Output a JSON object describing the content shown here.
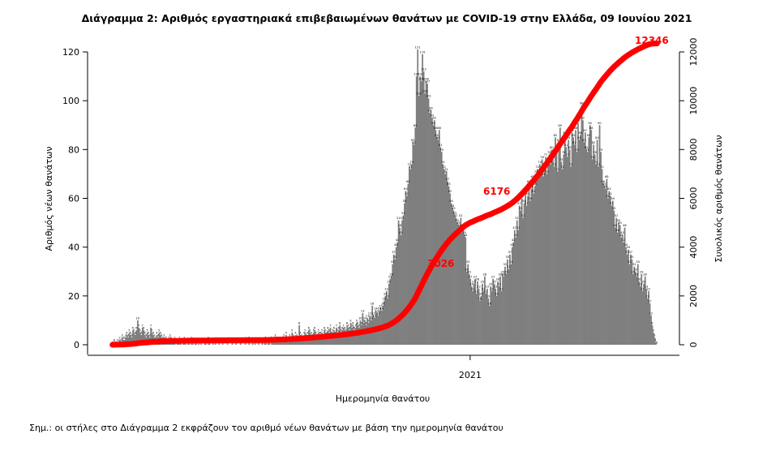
{
  "chart_data": {
    "type": "bar+line",
    "title": "Διάγραμμα 2: Αριθμός εργαστηριακά επιβεβαιωμένων θανάτων με COVID-19 στην Ελλάδα, 09 Ιουνίου 2021",
    "xlabel": "Ημερομηνία θανάτου",
    "ylabel_left": "Αριθμός νέων θανάτων",
    "ylabel_right": "Συνολικός αριθμός θανάτων",
    "x_tick_labels": [
      "2021"
    ],
    "ylim_left": [
      0,
      120
    ],
    "yticks_left": [
      0,
      20,
      40,
      60,
      80,
      100,
      120
    ],
    "ylim_right": [
      0,
      12000
    ],
    "yticks_right": [
      0,
      2000,
      4000,
      6000,
      8000,
      10000,
      12000
    ],
    "grid": false,
    "bar_color": "#7f7f7f",
    "line_color": "#ff0000",
    "series": [
      {
        "type": "bar",
        "values": [
          0,
          1,
          1,
          0,
          1,
          1,
          2,
          1,
          3,
          2,
          2,
          3,
          4,
          3,
          5,
          4,
          3,
          6,
          5,
          4,
          6,
          10,
          7,
          5,
          4,
          7,
          6,
          4,
          3,
          5,
          4,
          3,
          7,
          5,
          4,
          3,
          2,
          4,
          3,
          5,
          4,
          3,
          2,
          3,
          2,
          2,
          1,
          2,
          3,
          2,
          1,
          1,
          2,
          0,
          1,
          1,
          2,
          1,
          0,
          1,
          2,
          1,
          0,
          1,
          1,
          0,
          2,
          1,
          0,
          1,
          1,
          0,
          1,
          0,
          1,
          0,
          0,
          1,
          1,
          0,
          2,
          1,
          0,
          0,
          1,
          0,
          1,
          0,
          0,
          1,
          0,
          0,
          1,
          0,
          0,
          0,
          1,
          0,
          0,
          0,
          1,
          0,
          0,
          1,
          0,
          0,
          0,
          1,
          0,
          0,
          0,
          1,
          0,
          0,
          2,
          0,
          0,
          1,
          0,
          1,
          0,
          0,
          1,
          0,
          0,
          1,
          0,
          1,
          2,
          0,
          1,
          1,
          0,
          2,
          1,
          1,
          3,
          1,
          2,
          2,
          1,
          2,
          1,
          3,
          2,
          4,
          2,
          1,
          3,
          2,
          5,
          3,
          2,
          4,
          3,
          2,
          8,
          4,
          3,
          2,
          4,
          5,
          3,
          4,
          6,
          5,
          4,
          3,
          5,
          6,
          4,
          3,
          5,
          4,
          4,
          5,
          3,
          6,
          5,
          4,
          6,
          5,
          7,
          4,
          5,
          6,
          4,
          7,
          5,
          6,
          8,
          5,
          6,
          7,
          6,
          5,
          8,
          7,
          6,
          9,
          7,
          8,
          6,
          7,
          9,
          8,
          7,
          10,
          8,
          13,
          9,
          10,
          8,
          11,
          9,
          12,
          10,
          16,
          12,
          11,
          14,
          13,
          12,
          14,
          15,
          14,
          16,
          18,
          20,
          22,
          19,
          25,
          27,
          28,
          33,
          37,
          35,
          40,
          42,
          51,
          48,
          45,
          51,
          53,
          58,
          63,
          61,
          66,
          73,
          72,
          74,
          83,
          82,
          89,
          110,
          121,
          102,
          110,
          108,
          119,
          112,
          103,
          108,
          107,
          101,
          95,
          96,
          93,
          90,
          92,
          88,
          85,
          84,
          88,
          81,
          79,
          74,
          72,
          70,
          71,
          67,
          65,
          62,
          58,
          56,
          55,
          53,
          52,
          50,
          49,
          48,
          52,
          46,
          48,
          45,
          44,
          30,
          33,
          29,
          27,
          24,
          22,
          25,
          27,
          21,
          26,
          23,
          18,
          20,
          25,
          22,
          28,
          21,
          23,
          19,
          16,
          24,
          22,
          27,
          25,
          23,
          20,
          26,
          24,
          28,
          22,
          29,
          28,
          32,
          29,
          35,
          31,
          37,
          33,
          40,
          42,
          47,
          44,
          51,
          47,
          57,
          55,
          60,
          52,
          58,
          62,
          57,
          61,
          66,
          59,
          64,
          68,
          62,
          65,
          70,
          72,
          68,
          74,
          71,
          76,
          69,
          73,
          77,
          70,
          75,
          78,
          74,
          80,
          76,
          73,
          85,
          79,
          71,
          83,
          89,
          75,
          72,
          78,
          86,
          81,
          77,
          84,
          80,
          73,
          87,
          85,
          82,
          88,
          79,
          91,
          84,
          86,
          98,
          92,
          83,
          87,
          80,
          79,
          85,
          90,
          88,
          76,
          82,
          78,
          74,
          84,
          73,
          90,
          79,
          72,
          66,
          65,
          64,
          68,
          60,
          63,
          61,
          57,
          59,
          55,
          48,
          52,
          46,
          50,
          49,
          44,
          45,
          42,
          48,
          40,
          37,
          39,
          33,
          37,
          35,
          29,
          32,
          30,
          28,
          33,
          26,
          24,
          29,
          22,
          25,
          28,
          23,
          19,
          22,
          17,
          12,
          8,
          5,
          3,
          1,
          0
        ]
      },
      {
        "type": "line",
        "axis": "right",
        "annotations": [
          "3026",
          "6176",
          "12346"
        ],
        "final_value": 12346
      }
    ]
  },
  "footnote": "Σημ.: οι στήλες στο Διάγραμμα 2 εκφράζουν τον αριθμό νέων θανάτων με βάση την ημερομηνία θανάτου"
}
